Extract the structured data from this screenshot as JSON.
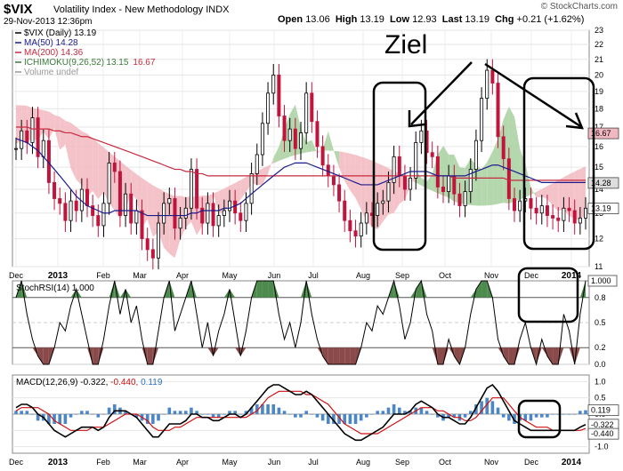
{
  "header": {
    "symbol": "$VIX",
    "name": "Volatility Index - New Methodology INDX",
    "date": "29-Nov-2013 12:36pm",
    "open_label": "Open",
    "open": "13.06",
    "high_label": "High",
    "high": "13.19",
    "low_label": "Low",
    "low": "12.93",
    "last_label": "Last",
    "last": "13.19",
    "chg_label": "Chg",
    "chg": "+0.21 (+1.62%)",
    "copyright": "© StockCharts.com"
  },
  "annotation": {
    "text": "Ziel"
  },
  "colors": {
    "ma50": "#1b1b8a",
    "ma200": "#c62b3f",
    "cloud_bear": "#f2b8c0",
    "cloud_bull": "#a8d0a0",
    "stoch_hi": "#4d8a4d",
    "stoch_lo": "#8a4a4a",
    "macd_line": "#000000",
    "signal_line": "#d01010",
    "hist": "#4a86c8"
  },
  "chart_data": [
    {
      "type": "line",
      "panel": "price",
      "legend": [
        {
          "label": "$VIX (Daily) 13.19",
          "color": "#000000"
        },
        {
          "label": "MA(50) 14.28",
          "color": "#1b1b8a"
        },
        {
          "label": "MA(200) 14.36",
          "color": "#c62b3f"
        },
        {
          "label": "ICHIMOKU(9,26,52)",
          "extra1": "13.15",
          "extra2": "16.67",
          "color": "#3a7a3a"
        },
        {
          "label": "Volume undef",
          "color": "#999999"
        }
      ],
      "yscale": "log",
      "ylim": [
        11,
        23
      ],
      "yticks": [
        11,
        12,
        13,
        14,
        15,
        16,
        17,
        18,
        19,
        20,
        21,
        22,
        23
      ],
      "right_tags": [
        "16.67",
        "14.28",
        "13.19"
      ],
      "months": [
        "Dec",
        "2013",
        "Feb",
        "Mar",
        "Apr",
        "May",
        "Jun",
        "Jul",
        "Aug",
        "Sep",
        "Oct",
        "Nov",
        "Dec",
        "2014"
      ],
      "series": [
        {
          "name": "$VIX",
          "values": [
            15.9,
            16.8,
            16.2,
            17.5,
            15.5,
            16.3,
            14.3,
            13.6,
            13.4,
            12.7,
            13.5,
            13.1,
            14.0,
            13.3,
            12.9,
            12.5,
            13.4,
            15.2,
            14.8,
            12.9,
            13.8,
            12.6,
            13.1,
            12.0,
            11.6,
            11.3,
            12.6,
            13.4,
            13.6,
            12.4,
            12.8,
            13.2,
            14.9,
            13.2,
            12.6,
            13.4,
            12.5,
            12.9,
            13.1,
            13.5,
            13.0,
            12.7,
            13.4,
            14.7,
            15.6,
            17.2,
            18.9,
            20.0,
            17.6,
            16.3,
            16.9,
            15.9,
            16.7,
            18.9,
            17.3,
            16.0,
            15.1,
            14.6,
            14.2,
            13.5,
            12.7,
            12.3,
            12.1,
            12.6,
            13.0,
            12.9,
            13.4,
            13.5,
            14.3,
            15.5,
            14.6,
            14.0,
            14.5,
            16.2,
            16.8,
            15.7,
            15.5,
            14.1,
            13.9,
            14.6,
            13.8,
            13.3,
            13.9,
            14.9,
            16.3,
            18.6,
            20.3,
            19.5,
            16.5,
            15.4,
            13.6,
            13.1,
            13.5,
            13.6,
            13.2,
            13.0,
            13.3,
            12.9,
            12.8,
            12.7,
            13.2,
            13.1,
            12.6,
            12.8,
            13.2
          ]
        },
        {
          "name": "MA(50)",
          "values": [
            16.4,
            16.3,
            16.2,
            16.0,
            15.8,
            15.5,
            15.2,
            14.9,
            14.6,
            14.3,
            14.0,
            13.7,
            13.5,
            13.3,
            13.2,
            13.1,
            13.0,
            13.0,
            13.1,
            13.1,
            13.1,
            13.1,
            13.1,
            13.0,
            12.9,
            12.9,
            12.9,
            12.9,
            12.9,
            12.9,
            12.9,
            12.9,
            13.0,
            13.0,
            13.1,
            13.1,
            13.1,
            13.1,
            13.2,
            13.2,
            13.3,
            13.4,
            13.6,
            13.8,
            14.0,
            14.2,
            14.4,
            14.6,
            14.8,
            15.0,
            15.1,
            15.2,
            15.2,
            15.2,
            15.1,
            15.0,
            14.9,
            14.8,
            14.7,
            14.6,
            14.5,
            14.4,
            14.3,
            14.2,
            14.2,
            14.2,
            14.2,
            14.3,
            14.4,
            14.5,
            14.6,
            14.7,
            14.8,
            14.8,
            14.8,
            14.8,
            14.7,
            14.6,
            14.6,
            14.6,
            14.6,
            14.6,
            14.6,
            14.7,
            14.8,
            14.9,
            15.0,
            15.1,
            15.1,
            15.0,
            14.9,
            14.8,
            14.7,
            14.6,
            14.5,
            14.4,
            14.3,
            14.3,
            14.3,
            14.3,
            14.3,
            14.3,
            14.3,
            14.3,
            14.3
          ]
        },
        {
          "name": "MA(200)",
          "values": [
            17.0,
            17.0,
            17.0,
            16.9,
            16.9,
            16.9,
            16.9,
            16.8,
            16.8,
            16.7,
            16.7,
            16.6,
            16.5,
            16.5,
            16.4,
            16.3,
            16.2,
            16.1,
            16.0,
            15.9,
            15.8,
            15.7,
            15.6,
            15.5,
            15.4,
            15.3,
            15.2,
            15.1,
            15.0,
            14.9,
            14.9,
            14.8,
            14.8,
            14.7,
            14.7,
            14.6,
            14.6,
            14.6,
            14.6,
            14.6,
            14.6,
            14.6,
            14.6,
            14.6,
            14.6,
            14.6,
            14.6,
            14.6,
            14.6,
            14.6,
            14.6,
            14.6,
            14.6,
            14.6,
            14.6,
            14.6,
            14.6,
            14.6,
            14.6,
            14.6,
            14.6,
            14.6,
            14.6,
            14.6,
            14.6,
            14.6,
            14.6,
            14.6,
            14.6,
            14.6,
            14.6,
            14.6,
            14.6,
            14.6,
            14.6,
            14.6,
            14.6,
            14.6,
            14.6,
            14.6,
            14.5,
            14.5,
            14.5,
            14.5,
            14.5,
            14.5,
            14.5,
            14.5,
            14.5,
            14.5,
            14.4,
            14.4,
            14.4,
            14.4,
            14.4,
            14.4,
            14.4,
            14.4,
            14.4,
            14.4,
            14.4,
            14.4,
            14.4,
            14.4,
            14.4
          ]
        }
      ]
    },
    {
      "type": "line",
      "panel": "stochrsi",
      "title": "StochRSI(14) 1.000",
      "ylim": [
        0,
        1
      ],
      "yticks": [
        0.0,
        0.2,
        0.5,
        0.8
      ],
      "right_tag": "1.000",
      "series": [
        {
          "name": "StochRSI",
          "values": [
            0.8,
            1.0,
            0.6,
            0.3,
            0.1,
            0.0,
            0.0,
            0.2,
            0.5,
            0.4,
            0.7,
            0.9,
            0.6,
            0.3,
            0.0,
            0.0,
            0.3,
            0.7,
            1.0,
            0.6,
            0.9,
            0.5,
            0.7,
            0.3,
            0.0,
            0.0,
            0.4,
            0.8,
            1.0,
            0.4,
            0.6,
            0.8,
            1.0,
            0.6,
            0.2,
            0.5,
            0.1,
            0.4,
            0.6,
            0.9,
            0.5,
            0.1,
            0.4,
            0.8,
            1.0,
            1.0,
            1.0,
            1.0,
            0.6,
            0.3,
            0.5,
            0.2,
            0.5,
            1.0,
            0.6,
            0.3,
            0.1,
            0.0,
            0.0,
            0.0,
            0.0,
            0.0,
            0.0,
            0.2,
            0.5,
            0.4,
            0.7,
            0.6,
            0.8,
            1.0,
            0.7,
            0.3,
            0.5,
            0.9,
            1.0,
            0.6,
            0.4,
            0.0,
            0.0,
            0.3,
            0.1,
            0.0,
            0.2,
            0.6,
            0.9,
            1.0,
            1.0,
            0.8,
            0.3,
            0.1,
            0.0,
            0.0,
            0.3,
            0.5,
            0.2,
            0.0,
            0.3,
            0.1,
            0.0,
            0.0,
            0.6,
            0.4,
            0.0,
            0.6,
            1.0
          ]
        }
      ]
    },
    {
      "type": "line",
      "panel": "macd",
      "title": "MACD(12,26,9)",
      "macd_value": "-0.322",
      "signal_value": "-0.440",
      "hist_value": "0.119",
      "ylim": [
        -1.2,
        1.2
      ],
      "yticks": [
        -1.0,
        -0.5,
        0.0,
        0.5,
        1.0
      ],
      "right_tags": [
        "0.119",
        "-0.322",
        "-0.440"
      ],
      "months": [
        "Dec",
        "2013",
        "Feb",
        "Mar",
        "Apr",
        "May",
        "Jun",
        "Jul",
        "Aug",
        "Sep",
        "Oct",
        "Nov",
        "Dec",
        "2014"
      ],
      "series": [
        {
          "name": "MACD",
          "values": [
            0.2,
            0.3,
            0.3,
            0.2,
            0.0,
            -0.1,
            -0.3,
            -0.5,
            -0.6,
            -0.7,
            -0.6,
            -0.5,
            -0.4,
            -0.4,
            -0.4,
            -0.5,
            -0.4,
            -0.1,
            0.1,
            0.1,
            0.1,
            0.0,
            -0.1,
            -0.3,
            -0.5,
            -0.7,
            -0.7,
            -0.5,
            -0.3,
            -0.3,
            -0.3,
            -0.2,
            0.0,
            0.0,
            -0.1,
            -0.1,
            -0.2,
            -0.2,
            -0.1,
            0.0,
            0.0,
            -0.1,
            0.0,
            0.2,
            0.4,
            0.6,
            0.8,
            0.9,
            0.9,
            0.8,
            0.7,
            0.6,
            0.6,
            0.7,
            0.6,
            0.4,
            0.2,
            0.0,
            -0.2,
            -0.4,
            -0.6,
            -0.7,
            -0.8,
            -0.8,
            -0.7,
            -0.6,
            -0.5,
            -0.4,
            -0.2,
            0.0,
            0.0,
            0.0,
            0.1,
            0.3,
            0.4,
            0.3,
            0.2,
            0.0,
            -0.1,
            -0.1,
            -0.2,
            -0.3,
            -0.3,
            -0.1,
            0.2,
            0.5,
            0.8,
            0.9,
            0.7,
            0.4,
            0.1,
            -0.2,
            -0.3,
            -0.4,
            -0.5,
            -0.5,
            -0.5,
            -0.5,
            -0.5,
            -0.5,
            -0.5,
            -0.5,
            -0.5,
            -0.4,
            -0.32
          ]
        },
        {
          "name": "Signal",
          "values": [
            0.1,
            0.2,
            0.2,
            0.2,
            0.2,
            0.1,
            0.0,
            -0.2,
            -0.3,
            -0.4,
            -0.5,
            -0.5,
            -0.5,
            -0.5,
            -0.4,
            -0.4,
            -0.4,
            -0.3,
            -0.2,
            -0.1,
            0.0,
            0.0,
            0.0,
            -0.1,
            -0.2,
            -0.4,
            -0.5,
            -0.5,
            -0.5,
            -0.4,
            -0.4,
            -0.3,
            -0.2,
            -0.1,
            -0.1,
            -0.1,
            -0.1,
            -0.1,
            -0.1,
            -0.1,
            -0.1,
            -0.1,
            -0.1,
            0.0,
            0.1,
            0.3,
            0.5,
            0.6,
            0.7,
            0.7,
            0.7,
            0.7,
            0.7,
            0.6,
            0.6,
            0.5,
            0.4,
            0.3,
            0.1,
            -0.1,
            -0.3,
            -0.4,
            -0.5,
            -0.6,
            -0.6,
            -0.6,
            -0.6,
            -0.5,
            -0.4,
            -0.3,
            -0.2,
            -0.1,
            0.0,
            0.1,
            0.2,
            0.2,
            0.2,
            0.1,
            0.1,
            0.0,
            -0.1,
            -0.1,
            -0.2,
            -0.2,
            -0.1,
            0.1,
            0.3,
            0.5,
            0.5,
            0.5,
            0.3,
            0.1,
            -0.1,
            -0.2,
            -0.3,
            -0.4,
            -0.4,
            -0.4,
            -0.5,
            -0.5,
            -0.5,
            -0.5,
            -0.5,
            -0.5,
            -0.44
          ]
        }
      ]
    }
  ]
}
